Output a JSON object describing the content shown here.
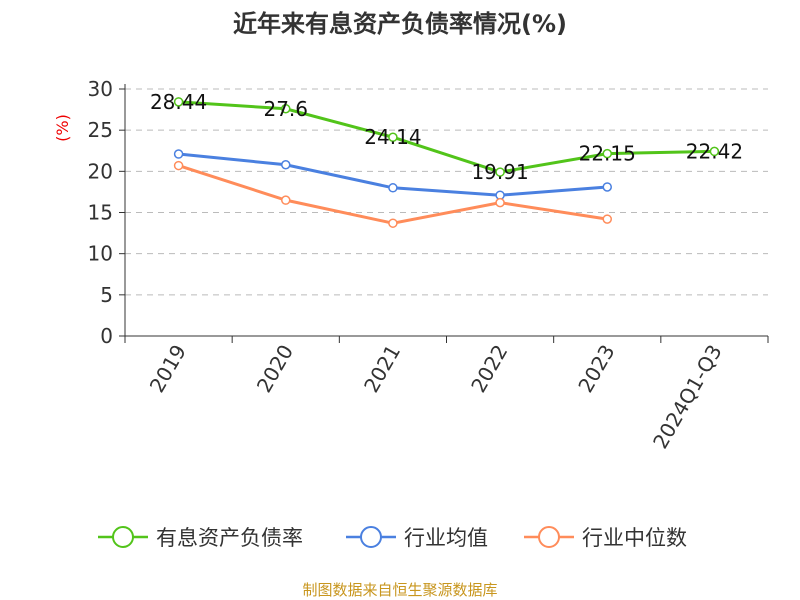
{
  "chart_data": {
    "type": "line",
    "title": "近年来有息资产负债率情况(%)",
    "ylabel": "(%)",
    "ylim": [
      0,
      30
    ],
    "yticks": [
      0,
      5,
      10,
      15,
      20,
      25,
      30
    ],
    "grid": true,
    "legend_position": "bottom",
    "categories": [
      "2019",
      "2020",
      "2021",
      "2022",
      "2023",
      "2024Q1-Q3"
    ],
    "series": [
      {
        "name": "有息资产负债率",
        "color": "#52c41a",
        "values": [
          28.44,
          27.6,
          24.14,
          19.91,
          22.15,
          22.42
        ],
        "labels": [
          "28.44",
          "27.6",
          "24.14",
          "19.91",
          "22.15",
          "22.42"
        ]
      },
      {
        "name": "行业均值",
        "color": "#4a80e0",
        "values": [
          22.1,
          20.8,
          18.0,
          17.1,
          18.1,
          null
        ]
      },
      {
        "name": "行业中位数",
        "color": "#ff8c5a",
        "values": [
          20.7,
          16.5,
          13.7,
          16.2,
          14.2,
          null
        ]
      }
    ]
  },
  "source": "制图数据来自恒生聚源数据库"
}
